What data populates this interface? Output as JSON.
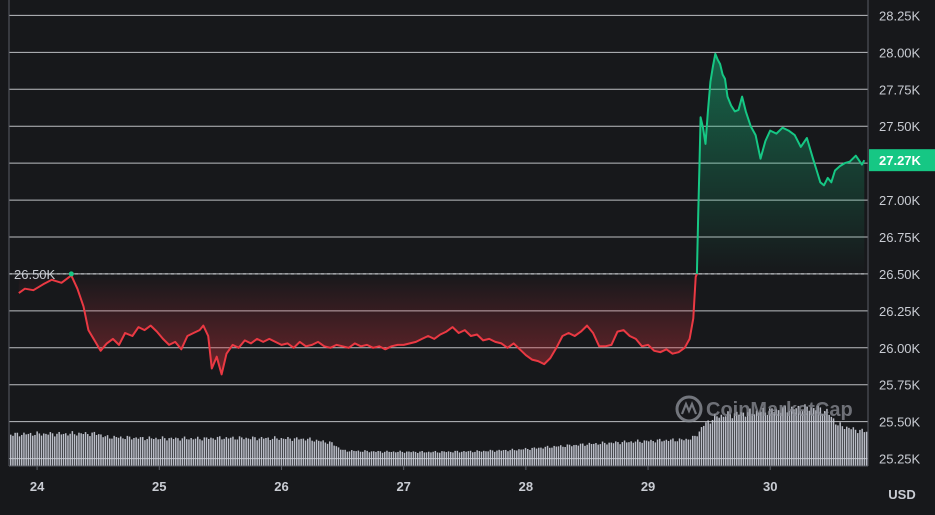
{
  "chart_data": {
    "type": "area",
    "currency_label": "USD",
    "watermark_text": "CoinMarketCap",
    "ylim": [
      25200,
      28300
    ],
    "y_ticks": [
      25250,
      25500,
      25750,
      26000,
      26250,
      26500,
      26750,
      27000,
      27250,
      27500,
      27750,
      28000,
      28250
    ],
    "y_tick_labels": [
      "25.25K",
      "25.50K",
      "25.75K",
      "26.00K",
      "26.25K",
      "26.50K",
      "26.75K",
      "27.00K",
      "27.25K",
      "27.50K",
      "27.75K",
      "28.00K",
      "28.25K"
    ],
    "x_range": [
      23.77,
      30.8
    ],
    "x_ticks": [
      24,
      25,
      26,
      27,
      28,
      29,
      30
    ],
    "x_tick_labels": [
      "24",
      "25",
      "26",
      "27",
      "28",
      "29",
      "30"
    ],
    "baseline": {
      "value": 26500,
      "label": "26.50K"
    },
    "current_price": {
      "value": 27270,
      "label": "27.27K"
    },
    "colors": {
      "up": "#16c784",
      "down": "#ea3943",
      "grid": "#d9dbe0",
      "background": "#17181b",
      "volume": "#c9ccd6"
    },
    "series": [
      {
        "values": [
          [
            23.85,
            26370
          ],
          [
            23.9,
            26400
          ],
          [
            23.97,
            26390
          ],
          [
            24.05,
            26430
          ],
          [
            24.12,
            26460
          ],
          [
            24.2,
            26440
          ],
          [
            24.28,
            26490
          ],
          [
            24.33,
            26400
          ],
          [
            24.38,
            26280
          ],
          [
            24.42,
            26120
          ],
          [
            24.47,
            26050
          ],
          [
            24.52,
            25980
          ],
          [
            24.57,
            26030
          ],
          [
            24.62,
            26060
          ],
          [
            24.67,
            26020
          ],
          [
            24.72,
            26100
          ],
          [
            24.78,
            26080
          ],
          [
            24.83,
            26140
          ],
          [
            24.88,
            26120
          ],
          [
            24.93,
            26150
          ],
          [
            24.98,
            26110
          ],
          [
            25.03,
            26060
          ],
          [
            25.08,
            26020
          ],
          [
            25.13,
            26040
          ],
          [
            25.18,
            25990
          ],
          [
            25.23,
            26080
          ],
          [
            25.28,
            26100
          ],
          [
            25.33,
            26120
          ],
          [
            25.36,
            26150
          ],
          [
            25.4,
            26080
          ],
          [
            25.43,
            25860
          ],
          [
            25.47,
            25940
          ],
          [
            25.51,
            25820
          ],
          [
            25.55,
            25960
          ],
          [
            25.6,
            26020
          ],
          [
            25.65,
            26000
          ],
          [
            25.7,
            26050
          ],
          [
            25.75,
            26030
          ],
          [
            25.8,
            26060
          ],
          [
            25.85,
            26040
          ],
          [
            25.9,
            26060
          ],
          [
            25.95,
            26040
          ],
          [
            26.0,
            26020
          ],
          [
            26.05,
            26030
          ],
          [
            26.1,
            26000
          ],
          [
            26.15,
            26040
          ],
          [
            26.2,
            26010
          ],
          [
            26.25,
            26020
          ],
          [
            26.3,
            26040
          ],
          [
            26.35,
            26010
          ],
          [
            26.4,
            26000
          ],
          [
            26.45,
            26020
          ],
          [
            26.5,
            26010
          ],
          [
            26.55,
            26000
          ],
          [
            26.6,
            26030
          ],
          [
            26.65,
            26010
          ],
          [
            26.7,
            26020
          ],
          [
            26.75,
            26000
          ],
          [
            26.8,
            26010
          ],
          [
            26.85,
            25990
          ],
          [
            26.9,
            26010
          ],
          [
            26.95,
            26020
          ],
          [
            27.0,
            26020
          ],
          [
            27.05,
            26030
          ],
          [
            27.1,
            26040
          ],
          [
            27.15,
            26060
          ],
          [
            27.2,
            26080
          ],
          [
            27.25,
            26060
          ],
          [
            27.3,
            26090
          ],
          [
            27.35,
            26110
          ],
          [
            27.4,
            26140
          ],
          [
            27.45,
            26100
          ],
          [
            27.5,
            26120
          ],
          [
            27.55,
            26080
          ],
          [
            27.6,
            26090
          ],
          [
            27.65,
            26050
          ],
          [
            27.7,
            26060
          ],
          [
            27.75,
            26040
          ],
          [
            27.8,
            26030
          ],
          [
            27.85,
            26000
          ],
          [
            27.9,
            26030
          ],
          [
            27.95,
            25990
          ],
          [
            28.0,
            25950
          ],
          [
            28.05,
            25920
          ],
          [
            28.1,
            25910
          ],
          [
            28.15,
            25890
          ],
          [
            28.2,
            25930
          ],
          [
            28.25,
            26000
          ],
          [
            28.3,
            26080
          ],
          [
            28.35,
            26100
          ],
          [
            28.4,
            26080
          ],
          [
            28.45,
            26110
          ],
          [
            28.5,
            26150
          ],
          [
            28.55,
            26100
          ],
          [
            28.6,
            26010
          ],
          [
            28.65,
            26010
          ],
          [
            28.7,
            26020
          ],
          [
            28.75,
            26110
          ],
          [
            28.8,
            26120
          ],
          [
            28.85,
            26080
          ],
          [
            28.9,
            26060
          ],
          [
            28.95,
            26010
          ],
          [
            29.0,
            26020
          ],
          [
            29.05,
            25980
          ],
          [
            29.1,
            25970
          ],
          [
            29.15,
            25990
          ],
          [
            29.2,
            25960
          ],
          [
            29.25,
            25970
          ],
          [
            29.3,
            26000
          ],
          [
            29.34,
            26060
          ],
          [
            29.37,
            26200
          ],
          [
            29.39,
            26480
          ],
          [
            29.4,
            26500
          ]
        ]
      },
      {
        "values": [
          [
            29.4,
            26500
          ],
          [
            29.41,
            26900
          ],
          [
            29.42,
            27220
          ],
          [
            29.43,
            27560
          ],
          [
            29.45,
            27490
          ],
          [
            29.47,
            27380
          ],
          [
            29.49,
            27600
          ],
          [
            29.51,
            27800
          ],
          [
            29.53,
            27900
          ],
          [
            29.55,
            27990
          ],
          [
            29.57,
            27950
          ],
          [
            29.59,
            27920
          ],
          [
            29.61,
            27850
          ],
          [
            29.63,
            27820
          ],
          [
            29.65,
            27700
          ],
          [
            29.68,
            27640
          ],
          [
            29.71,
            27600
          ],
          [
            29.74,
            27610
          ],
          [
            29.77,
            27700
          ],
          [
            29.8,
            27600
          ],
          [
            29.84,
            27500
          ],
          [
            29.88,
            27440
          ],
          [
            29.92,
            27280
          ],
          [
            29.96,
            27400
          ],
          [
            30.0,
            27470
          ],
          [
            30.05,
            27450
          ],
          [
            30.1,
            27490
          ],
          [
            30.15,
            27470
          ],
          [
            30.2,
            27440
          ],
          [
            30.25,
            27360
          ],
          [
            30.3,
            27420
          ],
          [
            30.35,
            27280
          ],
          [
            30.38,
            27200
          ],
          [
            30.41,
            27120
          ],
          [
            30.44,
            27100
          ],
          [
            30.47,
            27150
          ],
          [
            30.5,
            27120
          ],
          [
            30.53,
            27200
          ],
          [
            30.57,
            27230
          ],
          [
            30.61,
            27250
          ],
          [
            30.65,
            27260
          ],
          [
            30.7,
            27300
          ],
          [
            30.75,
            27240
          ],
          [
            30.77,
            27270
          ]
        ]
      }
    ],
    "volume_profile": [
      [
        23.77,
        0.92
      ],
      [
        23.85,
        0.93
      ],
      [
        24.0,
        0.94
      ],
      [
        24.2,
        0.94
      ],
      [
        24.35,
        0.95
      ],
      [
        24.5,
        0.94
      ],
      [
        24.55,
        0.85
      ],
      [
        24.9,
        0.81
      ],
      [
        25.3,
        0.8
      ],
      [
        25.5,
        0.82
      ],
      [
        25.9,
        0.81
      ],
      [
        26.2,
        0.79
      ],
      [
        26.4,
        0.68
      ],
      [
        26.5,
        0.45
      ],
      [
        26.8,
        0.42
      ],
      [
        27.2,
        0.41
      ],
      [
        27.6,
        0.43
      ],
      [
        27.9,
        0.47
      ],
      [
        28.2,
        0.56
      ],
      [
        28.5,
        0.64
      ],
      [
        28.8,
        0.7
      ],
      [
        29.1,
        0.75
      ],
      [
        29.3,
        0.77
      ],
      [
        29.38,
        0.85
      ],
      [
        29.45,
        1.2
      ],
      [
        29.55,
        1.45
      ],
      [
        29.7,
        1.52
      ],
      [
        30.0,
        1.62
      ],
      [
        30.2,
        1.68
      ],
      [
        30.35,
        1.7
      ],
      [
        30.45,
        1.62
      ],
      [
        30.55,
        1.2
      ],
      [
        30.7,
        1.05
      ],
      [
        30.8,
        1.0
      ]
    ]
  }
}
